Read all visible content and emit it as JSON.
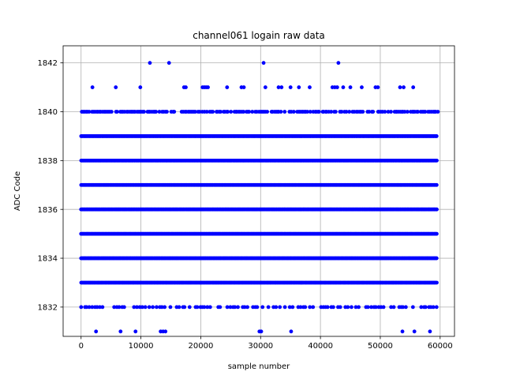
{
  "chart_data": {
    "type": "scatter",
    "title": "channel061 logain raw data",
    "xlabel": "sample number",
    "ylabel": "ADC Code",
    "xlim": [
      -3000,
      62400
    ],
    "ylim": [
      1830.8,
      1842.7
    ],
    "xticks": [
      0,
      10000,
      20000,
      30000,
      40000,
      50000,
      60000
    ],
    "yticks": [
      1832,
      1834,
      1836,
      1838,
      1840,
      1842
    ],
    "grid": true,
    "marker_color": "#0000ff",
    "x_range": [
      0,
      59500
    ],
    "dense_levels": [
      1833,
      1834,
      1835,
      1836,
      1837,
      1838,
      1839
    ],
    "medium_levels": [
      {
        "y": 1840,
        "spacing": 250
      },
      {
        "y": 1832,
        "spacing": 420
      }
    ],
    "sparse_points": [
      {
        "y": 1842,
        "x": [
          11500,
          14700,
          30500,
          43000
        ]
      },
      {
        "y": 1841,
        "x": [
          1900,
          5800,
          9900,
          17200,
          17500,
          20300,
          20600,
          20900,
          21200,
          24400,
          26800,
          27200,
          30800,
          33000,
          33500,
          35000,
          36400,
          38200,
          42000,
          42400,
          42800,
          43800,
          45000,
          46900,
          49200,
          49600,
          53300,
          53900,
          55500
        ]
      },
      {
        "y": 1831,
        "x": [
          2500,
          6600,
          9100,
          13300,
          13700,
          14100,
          29800,
          30100,
          35100,
          53700,
          55700,
          58300
        ]
      }
    ]
  }
}
